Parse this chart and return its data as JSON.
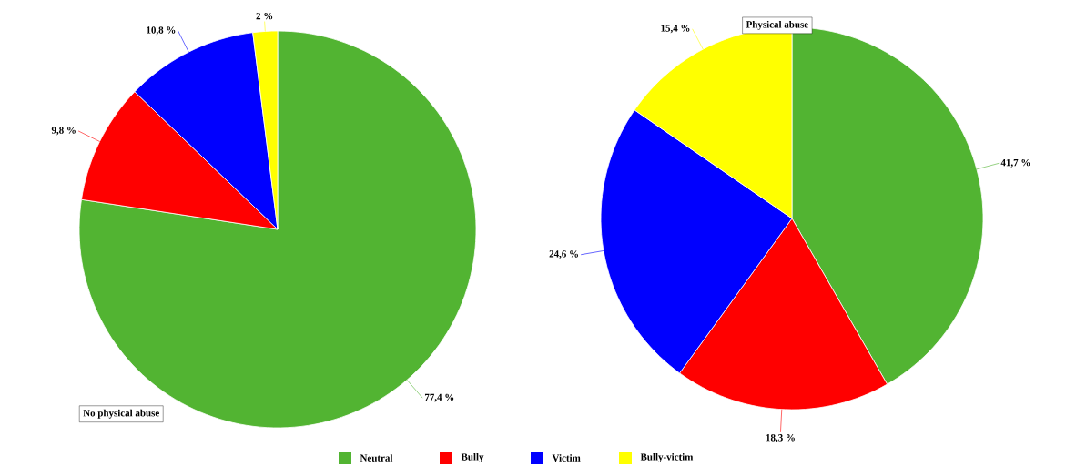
{
  "chart_data": [
    {
      "type": "pie",
      "title": "No physical abuse",
      "categories": [
        "Neutral",
        "Bully",
        "Victim",
        "Bully-victim"
      ],
      "values": [
        77.4,
        9.8,
        10.8,
        2
      ],
      "colors": [
        "#52b432",
        "#ff0000",
        "#0000ff",
        "#ffff00"
      ],
      "value_labels": [
        "77,4 %",
        "9,8 %",
        "10,8 %",
        "2 %"
      ],
      "legend": "bottom"
    },
    {
      "type": "pie",
      "title": "Physical abuse",
      "categories": [
        null,
        null,
        null,
        null
      ],
      "values": [
        41.7,
        18.3,
        24.6,
        15.4
      ],
      "colors": [
        "#52b432",
        "#ff0000",
        "#0000ff",
        "#ffff00"
      ],
      "value_labels": [
        "41,7 %",
        "18,3 %",
        "24,6 %",
        "15,4 %"
      ]
    }
  ]
}
